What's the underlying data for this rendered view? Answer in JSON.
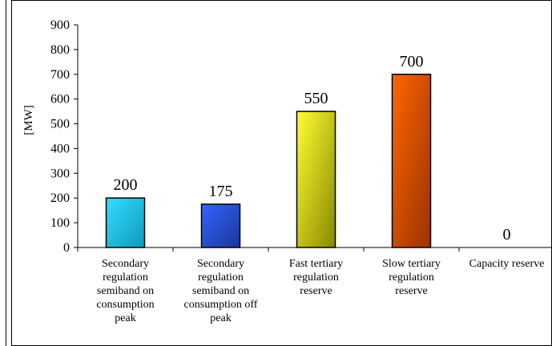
{
  "chart_data": {
    "type": "bar",
    "ylabel": "[MW]",
    "ylim": [
      0,
      900
    ],
    "yticks": [
      0,
      100,
      200,
      300,
      400,
      500,
      600,
      700,
      800,
      900
    ],
    "grid": false,
    "categories": [
      [
        "Secondary",
        "regulation",
        "semiband on",
        "consumption",
        "peak"
      ],
      [
        "Secondary",
        "regulation",
        "semiband on",
        "consumption off",
        "peak"
      ],
      [
        "Fast tertiary",
        "regulation",
        "reserve"
      ],
      [
        "Slow tertiary",
        "regulation",
        "reserve"
      ],
      [
        "Capacity reserve"
      ]
    ],
    "values": [
      200,
      175,
      550,
      700,
      0
    ],
    "value_labels": [
      "200",
      "175",
      "550",
      "700",
      "0"
    ],
    "colors": [
      [
        "#33ddff",
        "#1199bb"
      ],
      [
        "#3366ff",
        "#1a3599"
      ],
      [
        "#ffff33",
        "#888800"
      ],
      [
        "#ff6600",
        "#993300"
      ],
      [
        "#888888",
        "#444444"
      ]
    ]
  }
}
